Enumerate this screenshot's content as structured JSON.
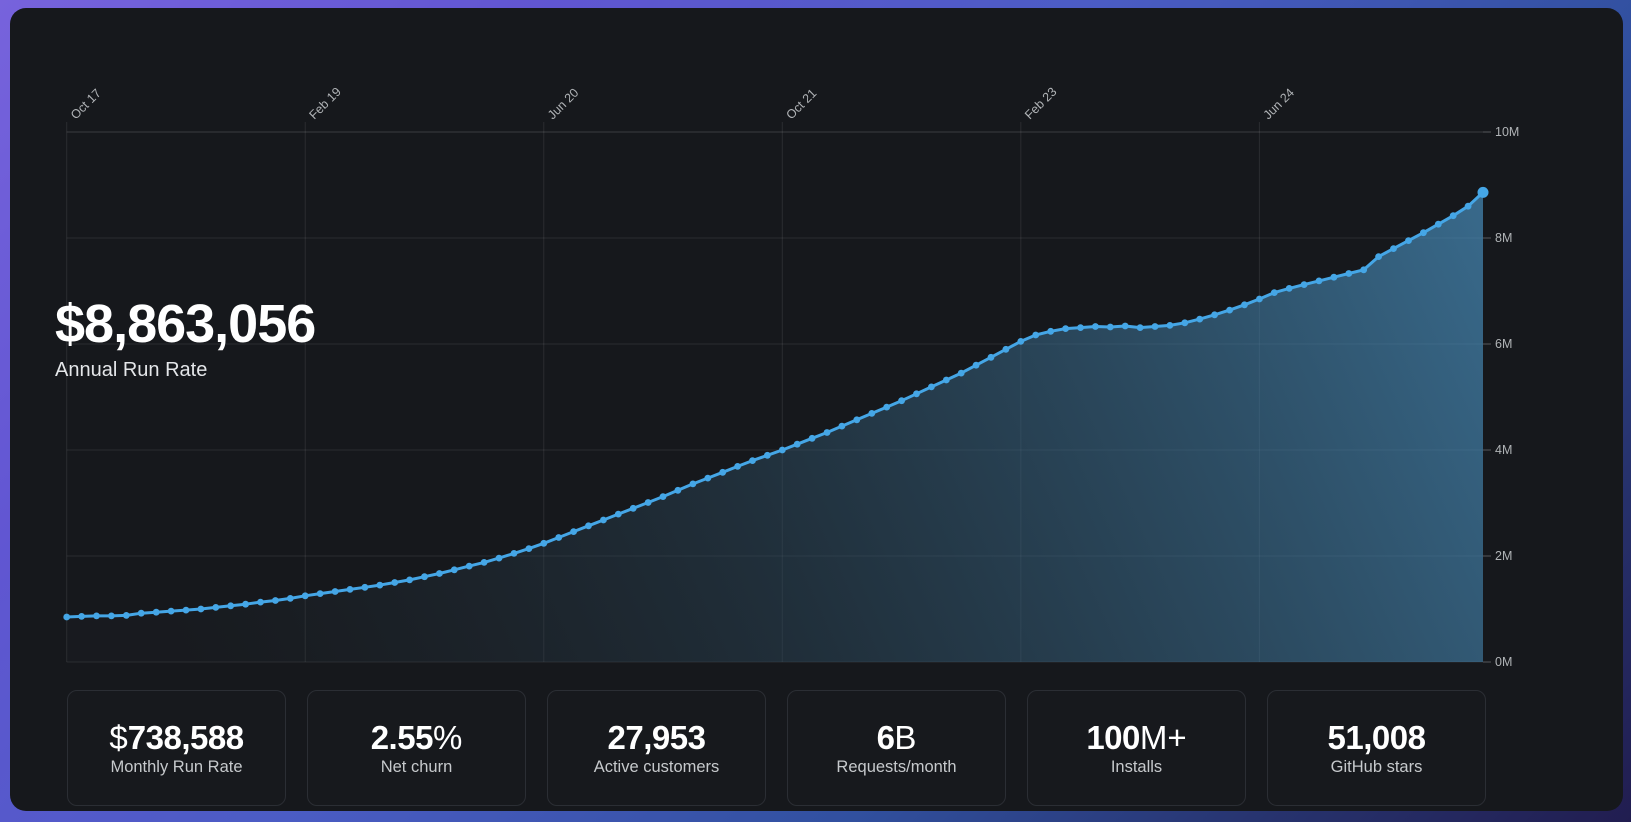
{
  "theme": {
    "accent_line": "#45a6e6",
    "panel_bg": "#16181c",
    "grid_color": "#ffffff",
    "axis_label_color": "#b0b3b6",
    "frame_gradient_top_left": "#7763dc",
    "frame_gradient_right": "#2d4a8f",
    "frame_gradient_bottom": "#211d50",
    "area_fill_top": "#4f9fd4",
    "area_fill_bottom": "#2a3640"
  },
  "headline": {
    "value": "$8,863,056",
    "label": "Annual Run Rate"
  },
  "chart_data": {
    "type": "area",
    "title": "Annual Run Rate ($, monthly data points)",
    "x_tick_labels": [
      "Oct 17",
      "Feb 19",
      "Jun 20",
      "Oct 21",
      "Feb 23",
      "Jun 24"
    ],
    "x_tick_month_indices": [
      0,
      16,
      32,
      48,
      64,
      80
    ],
    "y_tick_labels": [
      "10M",
      "8M",
      "6M",
      "4M",
      "2M",
      "0M"
    ],
    "ylim_millions": [
      0,
      10
    ],
    "grid": true,
    "legend": "none",
    "values_millions": [
      0.85,
      0.86,
      0.87,
      0.87,
      0.88,
      0.92,
      0.94,
      0.96,
      0.98,
      1.0,
      1.03,
      1.06,
      1.09,
      1.13,
      1.16,
      1.2,
      1.25,
      1.29,
      1.33,
      1.37,
      1.41,
      1.45,
      1.5,
      1.55,
      1.61,
      1.67,
      1.74,
      1.81,
      1.88,
      1.96,
      2.05,
      2.14,
      2.24,
      2.35,
      2.46,
      2.57,
      2.68,
      2.79,
      2.9,
      3.01,
      3.12,
      3.24,
      3.36,
      3.47,
      3.58,
      3.69,
      3.8,
      3.9,
      4.0,
      4.11,
      4.22,
      4.33,
      4.45,
      4.57,
      4.69,
      4.81,
      4.93,
      5.06,
      5.19,
      5.32,
      5.45,
      5.6,
      5.75,
      5.9,
      6.05,
      6.17,
      6.24,
      6.29,
      6.31,
      6.33,
      6.32,
      6.34,
      6.31,
      6.33,
      6.35,
      6.4,
      6.47,
      6.55,
      6.64,
      6.74,
      6.85,
      6.97,
      7.05,
      7.12,
      7.19,
      7.26,
      7.33,
      7.4,
      7.65,
      7.8,
      7.95,
      8.1,
      8.26,
      8.42,
      8.6,
      8.86
    ]
  },
  "stats": [
    {
      "pre": "$",
      "num": "738,588",
      "suf": "",
      "label": "Monthly Run Rate"
    },
    {
      "pre": "",
      "num": "2.55",
      "suf": "%",
      "label": "Net churn"
    },
    {
      "pre": "",
      "num": "27,953",
      "suf": "",
      "label": "Active customers"
    },
    {
      "pre": "",
      "num": "6",
      "suf": "B",
      "label": "Requests/month"
    },
    {
      "pre": "",
      "num": "100",
      "suf": "M+",
      "label": "Installs"
    },
    {
      "pre": "",
      "num": "51,008",
      "suf": "",
      "label": "GitHub stars"
    }
  ]
}
